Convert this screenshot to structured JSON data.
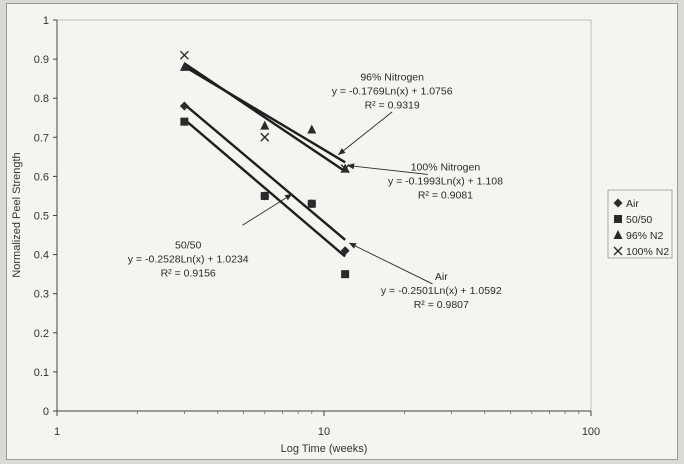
{
  "chart_data": {
    "type": "scatter",
    "xlabel": "Log Time (weeks)",
    "ylabel": "Normalized Peel Strength",
    "xscale": "log",
    "xlim": [
      1,
      100
    ],
    "ylim": [
      0,
      1
    ],
    "xticks": [
      "1",
      "10",
      "100"
    ],
    "yticks": [
      "0",
      "0.1",
      "0.2",
      "0.3",
      "0.4",
      "0.5",
      "0.6",
      "0.7",
      "0.8",
      "0.9",
      "1"
    ],
    "grid": false,
    "legend_position": "right",
    "series": [
      {
        "name": "Air",
        "marker": "diamond",
        "color": "#2a2a2a",
        "x": [
          3,
          6,
          9,
          12
        ],
        "y": [
          0.78,
          0.55,
          0.53,
          0.41
        ],
        "trend": {
          "a": -0.2501,
          "b": 1.0592,
          "x_range": [
            3,
            12
          ]
        }
      },
      {
        "name": "50/50",
        "marker": "square",
        "color": "#2a2a2a",
        "x": [
          3,
          6,
          9,
          12
        ],
        "y": [
          0.74,
          0.55,
          0.53,
          0.35
        ],
        "trend": {
          "a": -0.2528,
          "b": 1.0234,
          "x_range": [
            3,
            12
          ]
        }
      },
      {
        "name": "96% N2",
        "marker": "triangle",
        "color": "#2a2a2a",
        "x": [
          3,
          6,
          9,
          12
        ],
        "y": [
          0.88,
          0.73,
          0.72,
          0.62
        ],
        "trend": {
          "a": -0.1769,
          "b": 1.0756,
          "x_range": [
            3,
            12
          ]
        }
      },
      {
        "name": "100% N2",
        "marker": "x",
        "color": "#2a2a2a",
        "x": [
          3,
          6,
          12
        ],
        "y": [
          0.91,
          0.7,
          0.62
        ],
        "trend": {
          "a": -0.1993,
          "b": 1.108,
          "x_range": [
            3,
            12
          ]
        }
      }
    ],
    "annotations": [
      {
        "lines": [
          "96% Nitrogen",
          "y = -0.1769Ln(x) + 1.0756",
          "R² = 0.9319"
        ],
        "anchor": "middle",
        "text_at": [
          18,
          0.845
        ],
        "arrow_from": [
          18,
          0.765
        ],
        "arrow_to": [
          11.3,
          0.655
        ]
      },
      {
        "lines": [
          "100% Nitrogen",
          "y = -0.1993Ln(x) + 1.108",
          "R² = 0.9081"
        ],
        "anchor": "middle",
        "text_at": [
          28.5,
          0.615
        ],
        "arrow_from": [
          24.5,
          0.605
        ],
        "arrow_to": [
          12.2,
          0.628
        ]
      },
      {
        "lines": [
          "50/50",
          "y = -0.2528Ln(x) + 1.0234",
          "R² = 0.9156"
        ],
        "anchor": "middle",
        "text_at": [
          3.1,
          0.415
        ],
        "arrow_from": [
          4.95,
          0.475
        ],
        "arrow_to": [
          7.6,
          0.555
        ]
      },
      {
        "lines": [
          "Air",
          "y = -0.2501Ln(x) + 1.0592",
          "R² = 0.9807"
        ],
        "anchor": "middle",
        "text_at": [
          27.5,
          0.335
        ],
        "arrow_from": [
          25.5,
          0.325
        ],
        "arrow_to": [
          12.4,
          0.43
        ]
      }
    ]
  }
}
